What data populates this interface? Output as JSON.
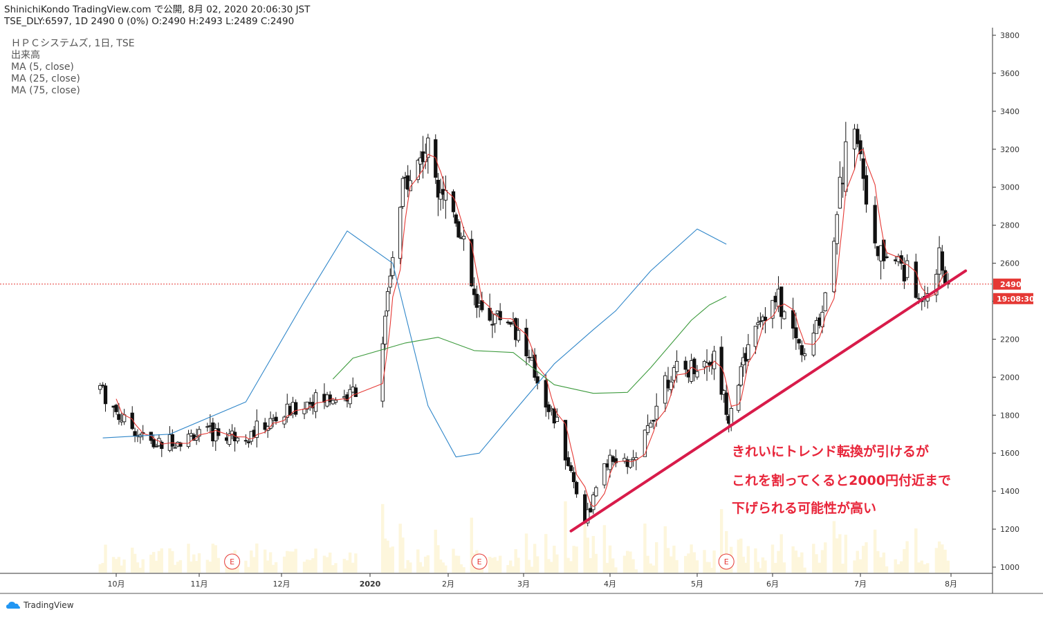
{
  "header": {
    "line1": "ShinichiKondo TradingView.com で公開, 8月 02, 2020 20:06:30 JST",
    "line2": "TSE_DLY:6597, 1D 2490 0 (0%) O:2490 H:2493 L:2489 C:2490"
  },
  "legend": [
    "ＨＰＣシステムズ, 1日, TSE",
    "出来高",
    "MA (5, close)",
    "MA (25, close)",
    "MA (75, close)"
  ],
  "price_label": "2490",
  "countdown_label": "19:08:30",
  "annotation": [
    "きれいにトレンド転換が引けるが",
    "これを割ってくると2000円付近まで",
    "下げられる可能性が高い"
  ],
  "earnings_marker": "E",
  "brand": "TradingView",
  "colors": {
    "ma5": "#e53935",
    "ma25": "#2f86c9",
    "ma75": "#3c9a3c",
    "trendline": "#d81b4a",
    "price_line": "#e53935",
    "note": "#e8253a"
  },
  "chart_data": {
    "type": "candlestick",
    "x_ticks": [
      "10月",
      "11月",
      "12月",
      "2020",
      "2月",
      "3月",
      "4月",
      "5月",
      "6月",
      "7月",
      "8月"
    ],
    "y_ticks": [
      1000,
      1200,
      1400,
      1600,
      1800,
      2000,
      2200,
      2400,
      2600,
      2800,
      3000,
      3200,
      3400,
      3600,
      3800
    ],
    "ylim": [
      1000,
      3800
    ],
    "last_price": 2490,
    "anchors": [
      {
        "date": "2019-09-25",
        "close": 1950
      },
      {
        "date": "2019-10-02",
        "close": 1800
      },
      {
        "date": "2019-10-15",
        "close": 1640
      },
      {
        "date": "2019-11-01",
        "close": 1700
      },
      {
        "date": "2019-11-20",
        "close": 1700
      },
      {
        "date": "2019-12-10",
        "close": 1870
      },
      {
        "date": "2019-12-25",
        "close": 1900
      },
      {
        "date": "2020-01-06",
        "close": 2200
      },
      {
        "date": "2020-01-14",
        "close": 3000
      },
      {
        "date": "2020-01-23",
        "close": 3200
      },
      {
        "date": "2020-02-04",
        "close": 2850
      },
      {
        "date": "2020-02-12",
        "close": 2350
      },
      {
        "date": "2020-02-26",
        "close": 2300
      },
      {
        "date": "2020-03-04",
        "close": 2050
      },
      {
        "date": "2020-03-13",
        "close": 1750
      },
      {
        "date": "2020-03-23",
        "close": 1250
      },
      {
        "date": "2020-03-31",
        "close": 1550
      },
      {
        "date": "2020-04-10",
        "close": 1550
      },
      {
        "date": "2020-04-20",
        "close": 2000
      },
      {
        "date": "2020-04-30",
        "close": 2050
      },
      {
        "date": "2020-05-08",
        "close": 2100
      },
      {
        "date": "2020-05-14",
        "close": 1800
      },
      {
        "date": "2020-05-25",
        "close": 2300
      },
      {
        "date": "2020-06-03",
        "close": 2400
      },
      {
        "date": "2020-06-12",
        "close": 2100
      },
      {
        "date": "2020-06-18",
        "close": 2350
      },
      {
        "date": "2020-06-24",
        "close": 3000
      },
      {
        "date": "2020-06-29",
        "close": 3400
      },
      {
        "date": "2020-07-06",
        "close": 2650
      },
      {
        "date": "2020-07-15",
        "close": 2600
      },
      {
        "date": "2020-07-21",
        "close": 2400
      },
      {
        "date": "2020-07-28",
        "close": 2600
      },
      {
        "date": "2020-07-31",
        "close": 2490
      }
    ],
    "ma25_points": [
      [
        1,
        1680
      ],
      [
        18,
        1700
      ],
      [
        38,
        1870
      ],
      [
        53,
        2400
      ],
      [
        64,
        2770
      ],
      [
        72,
        2600
      ],
      [
        82,
        1850
      ],
      [
        89,
        1580
      ],
      [
        96,
        1600
      ],
      [
        106,
        1830
      ],
      [
        116,
        2070
      ],
      [
        126,
        2250
      ],
      [
        132,
        2350
      ],
      [
        140,
        2560
      ],
      [
        152,
        2780
      ],
      [
        160,
        2700
      ]
    ],
    "ma75_points": [
      [
        61,
        1990
      ],
      [
        66,
        2100
      ],
      [
        75,
        2180
      ],
      [
        84,
        2210
      ],
      [
        94,
        2140
      ],
      [
        105,
        2130
      ],
      [
        116,
        1960
      ],
      [
        126,
        1915
      ],
      [
        134,
        1920
      ],
      [
        140,
        2050
      ],
      [
        150,
        2300
      ],
      [
        155,
        2380
      ],
      [
        160,
        2425
      ]
    ],
    "trendline": [
      {
        "date": "2020-03-18",
        "price": 1190
      },
      {
        "date": "2020-08-06",
        "price": 2560
      }
    ]
  }
}
